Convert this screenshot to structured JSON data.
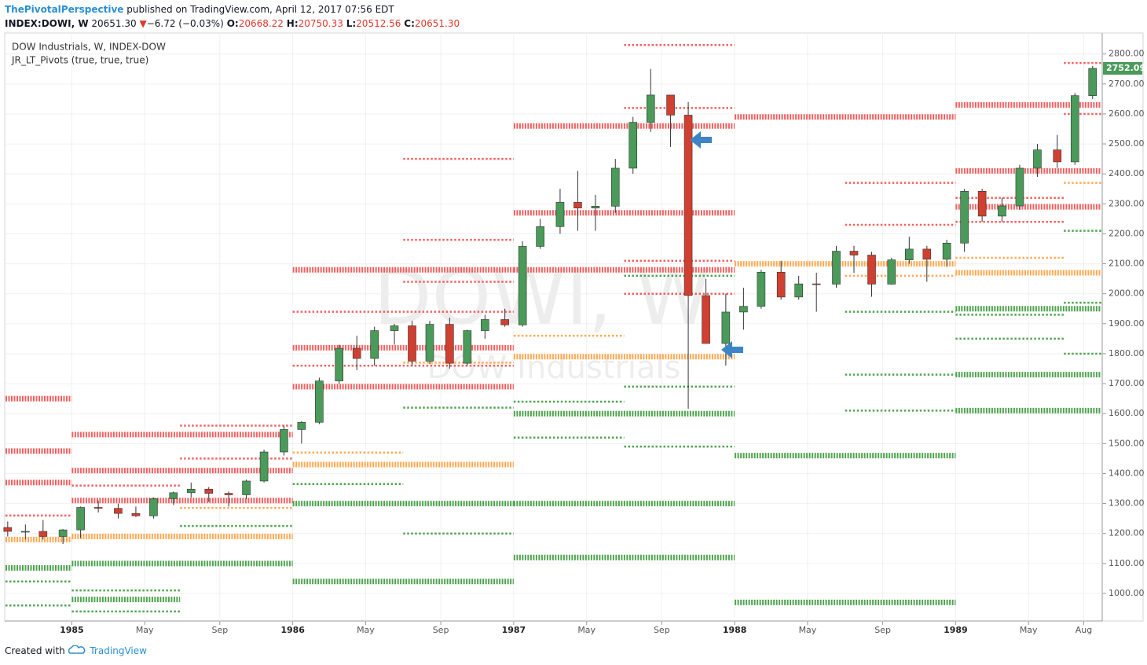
{
  "header": {
    "author": "ThePivotalPerspective",
    "published": "published on TradingView.com, April 12, 2017 07:56 EDT",
    "symbol": "INDEX:DOWI, W",
    "price": "20651.30",
    "change_arrow": "▼",
    "change": "−6.72 (−0.03%)",
    "o_label": "O:",
    "open": "20668.22",
    "h_label": "H:",
    "high": "20750.33",
    "l_label": "L:",
    "low": "20512.56",
    "c_label": "C:",
    "close": "20651.30"
  },
  "footer": {
    "created": "Created with",
    "brand": "TradingView"
  },
  "chart_data": {
    "type": "candlestick",
    "legend": [
      "DOW Industrials, W, INDEX-DOW",
      "JR_LT_Pivots (true, true, true)"
    ],
    "watermark": [
      "DOWI, W",
      "DOW Industrials"
    ],
    "last_price": 2752.09,
    "up_color": "#4a9a5a",
    "down_color": "#d04030",
    "xlim": [
      1984.7,
      1989.66
    ],
    "ylim": [
      950,
      2870
    ],
    "xticks": [
      1985,
      {
        "value": 1985.33,
        "label": "May"
      },
      {
        "value": 1985.67,
        "label": "Sep"
      },
      1986,
      {
        "value": 1986.33,
        "label": "May"
      },
      {
        "value": 1986.67,
        "label": "Sep"
      },
      1987,
      {
        "value": 1987.33,
        "label": "May"
      },
      {
        "value": 1987.67,
        "label": "Sep"
      },
      1988,
      {
        "value": 1988.33,
        "label": "May"
      },
      {
        "value": 1988.67,
        "label": "Sep"
      },
      1989,
      {
        "value": 1989.33,
        "label": "May"
      },
      {
        "value": 1989.58,
        "label": "Aug"
      }
    ],
    "yticks": [
      {
        "value": 1000,
        "label": "1000.00"
      },
      {
        "value": 1100,
        "label": "1100.00"
      },
      {
        "value": 1200,
        "label": "1200.00"
      },
      {
        "value": 1300,
        "label": "1300.00"
      },
      {
        "value": 1400,
        "label": "1400.00"
      },
      {
        "value": 1500,
        "label": "1500.00"
      },
      {
        "value": 1600,
        "label": "1600.00"
      },
      {
        "value": 1700,
        "label": "1700.00"
      },
      {
        "value": 1800,
        "label": "1800.00"
      },
      {
        "value": 1900,
        "label": "1900.00"
      },
      {
        "value": 2000,
        "label": "2000.00"
      },
      {
        "value": 2100,
        "label": "2100.00"
      },
      {
        "value": 2200,
        "label": "2200.00"
      },
      {
        "value": 2300,
        "label": "2300.00"
      },
      {
        "value": 2400,
        "label": "2400.00"
      },
      {
        "value": 2500,
        "label": "2500.00"
      },
      {
        "value": 2600,
        "label": "2600.00"
      },
      {
        "value": 2700,
        "label": "2700.00"
      },
      {
        "value": 2800,
        "label": "2800.00"
      }
    ],
    "candles": {
      "x": [
        1984.71,
        1984.79,
        1984.87,
        1984.96,
        1985.04,
        1985.12,
        1985.21,
        1985.29,
        1985.37,
        1985.46,
        1985.54,
        1985.62,
        1985.71,
        1985.79,
        1985.87,
        1985.96,
        1986.04,
        1986.12,
        1986.21,
        1986.29,
        1986.37,
        1986.46,
        1986.54,
        1986.62,
        1986.71,
        1986.79,
        1986.87,
        1986.96,
        1987.04,
        1987.12,
        1987.21,
        1987.29,
        1987.37,
        1987.46,
        1987.54,
        1987.62,
        1987.71,
        1987.79,
        1987.87,
        1987.96,
        1988.04,
        1988.12,
        1988.21,
        1988.29,
        1988.37,
        1988.46,
        1988.54,
        1988.62,
        1988.71,
        1988.79,
        1988.87,
        1988.96,
        1989.04,
        1989.12,
        1989.21,
        1989.29,
        1989.37,
        1989.46,
        1989.54,
        1989.62
      ],
      "open": [
        1220,
        1207,
        1207,
        1190,
        1212,
        1287,
        1284,
        1267,
        1259,
        1316,
        1336,
        1348,
        1334,
        1329,
        1375,
        1472,
        1547,
        1571,
        1709,
        1818,
        1784,
        1877,
        1893,
        1775,
        1898,
        1768,
        1877,
        1914,
        1896,
        2158,
        2224,
        2305,
        2286,
        2292,
        2419,
        2572,
        2663,
        2596,
        1994,
        1834,
        1939,
        1958,
        2072,
        1989,
        2033,
        2032,
        2142,
        2129,
        2032,
        2113,
        2149,
        2115,
        2169,
        2342,
        2259,
        2293,
        2419,
        2480,
        2440,
        2661
      ],
      "high": [
        1240,
        1230,
        1245,
        1215,
        1290,
        1310,
        1300,
        1290,
        1320,
        1340,
        1370,
        1355,
        1340,
        1380,
        1480,
        1560,
        1575,
        1720,
        1830,
        1860,
        1890,
        1900,
        1910,
        1910,
        1920,
        1880,
        1930,
        1950,
        2175,
        2250,
        2350,
        2410,
        2330,
        2450,
        2590,
        2750,
        2660,
        2640,
        2050,
        2000,
        2020,
        2080,
        2110,
        2060,
        2070,
        2160,
        2160,
        2140,
        2120,
        2190,
        2160,
        2180,
        2350,
        2350,
        2320,
        2430,
        2500,
        2530,
        2670,
        2760
      ],
      "low": [
        1190,
        1180,
        1180,
        1165,
        1185,
        1270,
        1250,
        1255,
        1250,
        1295,
        1320,
        1305,
        1290,
        1315,
        1370,
        1460,
        1500,
        1565,
        1700,
        1745,
        1760,
        1830,
        1760,
        1765,
        1750,
        1760,
        1850,
        1890,
        1890,
        2150,
        2200,
        2210,
        2210,
        2270,
        2400,
        2540,
        2490,
        1616,
        1880,
        1760,
        1880,
        1950,
        1980,
        1980,
        1940,
        2020,
        2070,
        1990,
        2030,
        2100,
        2040,
        2090,
        2140,
        2240,
        2240,
        2280,
        2390,
        2420,
        2430,
        2650
      ],
      "close": [
        1207,
        1207,
        1190,
        1212,
        1287,
        1284,
        1267,
        1259,
        1316,
        1336,
        1348,
        1334,
        1329,
        1375,
        1472,
        1547,
        1571,
        1709,
        1818,
        1784,
        1877,
        1893,
        1775,
        1898,
        1768,
        1877,
        1914,
        1896,
        2158,
        2224,
        2305,
        2286,
        2292,
        2419,
        2572,
        2663,
        2596,
        1994,
        1834,
        1939,
        1958,
        2072,
        1989,
        2033,
        2032,
        2142,
        2129,
        2032,
        2113,
        2149,
        2115,
        2169,
        2342,
        2259,
        2293,
        2419,
        2480,
        2440,
        2661,
        2752
      ]
    },
    "pivots": [
      {
        "from": 1984.7,
        "to": 1985.0,
        "value": 1650,
        "color": "#f05050",
        "weight": "thick"
      },
      {
        "from": 1984.7,
        "to": 1985.0,
        "value": 1475,
        "color": "#f05050",
        "weight": "thick"
      },
      {
        "from": 1984.7,
        "to": 1985.0,
        "value": 1370,
        "color": "#f05050",
        "weight": "thick"
      },
      {
        "from": 1984.7,
        "to": 1985.0,
        "value": 1260,
        "color": "#f05050",
        "weight": "thin"
      },
      {
        "from": 1984.7,
        "to": 1985.0,
        "value": 1180,
        "color": "#ffa040",
        "weight": "thick"
      },
      {
        "from": 1984.7,
        "to": 1985.0,
        "value": 1085,
        "color": "#3c9a3c",
        "weight": "thick"
      },
      {
        "from": 1984.7,
        "to": 1985.0,
        "value": 1040,
        "color": "#3c9a3c",
        "weight": "thin"
      },
      {
        "from": 1984.7,
        "to": 1985.0,
        "value": 960,
        "color": "#3c9a3c",
        "weight": "thin"
      },
      {
        "from": 1985.0,
        "to": 1986.0,
        "value": 1530,
        "color": "#f05050",
        "weight": "thick"
      },
      {
        "from": 1985.0,
        "to": 1986.0,
        "value": 1410,
        "color": "#f05050",
        "weight": "thick"
      },
      {
        "from": 1985.0,
        "to": 1986.0,
        "value": 1310,
        "color": "#f05050",
        "weight": "thick"
      },
      {
        "from": 1985.49,
        "to": 1986.0,
        "value": 1560,
        "color": "#f05050",
        "weight": "thin"
      },
      {
        "from": 1985.49,
        "to": 1986.0,
        "value": 1450,
        "color": "#f05050",
        "weight": "thin"
      },
      {
        "from": 1985.0,
        "to": 1985.49,
        "value": 1360,
        "color": "#f05050",
        "weight": "thin"
      },
      {
        "from": 1985.0,
        "to": 1986.0,
        "value": 1190,
        "color": "#ffa040",
        "weight": "thick"
      },
      {
        "from": 1985.49,
        "to": 1986.0,
        "value": 1285,
        "color": "#ffa040",
        "weight": "thin"
      },
      {
        "from": 1985.0,
        "to": 1986.0,
        "value": 1100,
        "color": "#3c9a3c",
        "weight": "thick"
      },
      {
        "from": 1985.0,
        "to": 1985.49,
        "value": 980,
        "color": "#3c9a3c",
        "weight": "thick"
      },
      {
        "from": 1985.49,
        "to": 1986.0,
        "value": 1225,
        "color": "#3c9a3c",
        "weight": "thin"
      },
      {
        "from": 1985.0,
        "to": 1985.49,
        "value": 1010,
        "color": "#3c9a3c",
        "weight": "thin"
      },
      {
        "from": 1985.0,
        "to": 1985.49,
        "value": 940,
        "color": "#3c9a3c",
        "weight": "thin"
      },
      {
        "from": 1986.0,
        "to": 1987.0,
        "value": 2080,
        "color": "#f05050",
        "weight": "thick"
      },
      {
        "from": 1986.0,
        "to": 1987.0,
        "value": 1820,
        "color": "#f05050",
        "weight": "thick"
      },
      {
        "from": 1986.0,
        "to": 1987.0,
        "value": 1690,
        "color": "#f05050",
        "weight": "thick"
      },
      {
        "from": 1986.0,
        "to": 1987.0,
        "value": 1940,
        "color": "#f05050",
        "weight": "thin"
      },
      {
        "from": 1986.0,
        "to": 1987.0,
        "value": 1760,
        "color": "#f05050",
        "weight": "thin"
      },
      {
        "from": 1986.5,
        "to": 1987.0,
        "value": 2450,
        "color": "#f05050",
        "weight": "thin"
      },
      {
        "from": 1986.5,
        "to": 1987.0,
        "value": 2180,
        "color": "#f05050",
        "weight": "thin"
      },
      {
        "from": 1986.5,
        "to": 1987.0,
        "value": 2040,
        "color": "#f05050",
        "weight": "thin"
      },
      {
        "from": 1986.0,
        "to": 1987.0,
        "value": 1430,
        "color": "#ffa040",
        "weight": "thick"
      },
      {
        "from": 1986.0,
        "to": 1986.5,
        "value": 1470,
        "color": "#ffa040",
        "weight": "thin"
      },
      {
        "from": 1986.5,
        "to": 1987.0,
        "value": 1770,
        "color": "#ffa040",
        "weight": "thin"
      },
      {
        "from": 1986.0,
        "to": 1987.0,
        "value": 1300,
        "color": "#3c9a3c",
        "weight": "thick"
      },
      {
        "from": 1986.0,
        "to": 1987.0,
        "value": 1040,
        "color": "#3c9a3c",
        "weight": "thick"
      },
      {
        "from": 1986.0,
        "to": 1986.5,
        "value": 1365,
        "color": "#3c9a3c",
        "weight": "thin"
      },
      {
        "from": 1986.5,
        "to": 1987.0,
        "value": 1200,
        "color": "#3c9a3c",
        "weight": "thin"
      },
      {
        "from": 1986.5,
        "to": 1987.0,
        "value": 1620,
        "color": "#3c9a3c",
        "weight": "thin"
      },
      {
        "from": 1987.0,
        "to": 1988.0,
        "value": 2560,
        "color": "#f05050",
        "weight": "thick"
      },
      {
        "from": 1987.0,
        "to": 1988.0,
        "value": 2270,
        "color": "#f05050",
        "weight": "thick"
      },
      {
        "from": 1987.0,
        "to": 1988.0,
        "value": 2080,
        "color": "#f05050",
        "weight": "thick"
      },
      {
        "from": 1987.5,
        "to": 1988.0,
        "value": 2830,
        "color": "#f05050",
        "weight": "thin"
      },
      {
        "from": 1987.5,
        "to": 1988.0,
        "value": 2620,
        "color": "#f05050",
        "weight": "thin"
      },
      {
        "from": 1987.5,
        "to": 1988.0,
        "value": 2110,
        "color": "#f05050",
        "weight": "thin"
      },
      {
        "from": 1987.5,
        "to": 1988.0,
        "value": 2000,
        "color": "#f05050",
        "weight": "thin"
      },
      {
        "from": 1987.0,
        "to": 1988.0,
        "value": 1790,
        "color": "#ffa040",
        "weight": "thick"
      },
      {
        "from": 1987.0,
        "to": 1987.5,
        "value": 1860,
        "color": "#ffa040",
        "weight": "thin"
      },
      {
        "from": 1987.0,
        "to": 1988.0,
        "value": 1600,
        "color": "#3c9a3c",
        "weight": "thick"
      },
      {
        "from": 1987.0,
        "to": 1988.0,
        "value": 1300,
        "color": "#3c9a3c",
        "weight": "thick"
      },
      {
        "from": 1987.0,
        "to": 1988.0,
        "value": 1120,
        "color": "#3c9a3c",
        "weight": "thick"
      },
      {
        "from": 1987.0,
        "to": 1987.5,
        "value": 1640,
        "color": "#3c9a3c",
        "weight": "thin"
      },
      {
        "from": 1987.0,
        "to": 1987.5,
        "value": 1520,
        "color": "#3c9a3c",
        "weight": "thin"
      },
      {
        "from": 1987.5,
        "to": 1988.0,
        "value": 1490,
        "color": "#3c9a3c",
        "weight": "thin"
      },
      {
        "from": 1987.5,
        "to": 1988.0,
        "value": 1690,
        "color": "#3c9a3c",
        "weight": "thin"
      },
      {
        "from": 1987.5,
        "to": 1988.0,
        "value": 2060,
        "color": "#3c9a3c",
        "weight": "thin"
      },
      {
        "from": 1988.0,
        "to": 1989.0,
        "value": 2590,
        "color": "#f05050",
        "weight": "thick"
      },
      {
        "from": 1988.5,
        "to": 1989.0,
        "value": 2370,
        "color": "#f05050",
        "weight": "thin"
      },
      {
        "from": 1988.5,
        "to": 1989.0,
        "value": 2230,
        "color": "#f05050",
        "weight": "thin"
      },
      {
        "from": 1988.0,
        "to": 1989.0,
        "value": 2100,
        "color": "#ffa040",
        "weight": "thick"
      },
      {
        "from": 1988.5,
        "to": 1989.0,
        "value": 2060,
        "color": "#ffa040",
        "weight": "thin"
      },
      {
        "from": 1988.0,
        "to": 1989.0,
        "value": 1460,
        "color": "#3c9a3c",
        "weight": "thick"
      },
      {
        "from": 1988.0,
        "to": 1989.0,
        "value": 970,
        "color": "#3c9a3c",
        "weight": "thick"
      },
      {
        "from": 1988.5,
        "to": 1989.0,
        "value": 1940,
        "color": "#3c9a3c",
        "weight": "thin"
      },
      {
        "from": 1988.5,
        "to": 1989.0,
        "value": 1730,
        "color": "#3c9a3c",
        "weight": "thin"
      },
      {
        "from": 1988.5,
        "to": 1989.0,
        "value": 1610,
        "color": "#3c9a3c",
        "weight": "thin"
      },
      {
        "from": 1989.0,
        "to": 1989.66,
        "value": 2630,
        "color": "#f05050",
        "weight": "thick"
      },
      {
        "from": 1989.0,
        "to": 1989.66,
        "value": 2410,
        "color": "#f05050",
        "weight": "thick"
      },
      {
        "from": 1989.0,
        "to": 1989.66,
        "value": 2290,
        "color": "#f05050",
        "weight": "thick"
      },
      {
        "from": 1989.49,
        "to": 1989.66,
        "value": 2770,
        "color": "#f05050",
        "weight": "thin"
      },
      {
        "from": 1989.49,
        "to": 1989.66,
        "value": 2600,
        "color": "#f05050",
        "weight": "thin"
      },
      {
        "from": 1989.0,
        "to": 1989.49,
        "value": 2320,
        "color": "#f05050",
        "weight": "thin"
      },
      {
        "from": 1989.0,
        "to": 1989.49,
        "value": 2240,
        "color": "#f05050",
        "weight": "thin"
      },
      {
        "from": 1989.0,
        "to": 1989.66,
        "value": 2070,
        "color": "#ffa040",
        "weight": "thick"
      },
      {
        "from": 1989.0,
        "to": 1989.49,
        "value": 2120,
        "color": "#ffa040",
        "weight": "thin"
      },
      {
        "from": 1989.49,
        "to": 1989.66,
        "value": 2370,
        "color": "#ffa040",
        "weight": "thin"
      },
      {
        "from": 1989.0,
        "to": 1989.66,
        "value": 1950,
        "color": "#3c9a3c",
        "weight": "thick"
      },
      {
        "from": 1989.0,
        "to": 1989.66,
        "value": 1730,
        "color": "#3c9a3c",
        "weight": "thick"
      },
      {
        "from": 1989.0,
        "to": 1989.66,
        "value": 1610,
        "color": "#3c9a3c",
        "weight": "thick"
      },
      {
        "from": 1989.49,
        "to": 1989.66,
        "value": 1970,
        "color": "#3c9a3c",
        "weight": "thin"
      },
      {
        "from": 1989.0,
        "to": 1989.49,
        "value": 1930,
        "color": "#3c9a3c",
        "weight": "thin"
      },
      {
        "from": 1989.0,
        "to": 1989.49,
        "value": 1850,
        "color": "#3c9a3c",
        "weight": "thin"
      },
      {
        "from": 1989.49,
        "to": 1989.66,
        "value": 1800,
        "color": "#3c9a3c",
        "weight": "thin"
      },
      {
        "from": 1989.49,
        "to": 1989.66,
        "value": 2210,
        "color": "#3c9a3c",
        "weight": "thin"
      }
    ]
  }
}
